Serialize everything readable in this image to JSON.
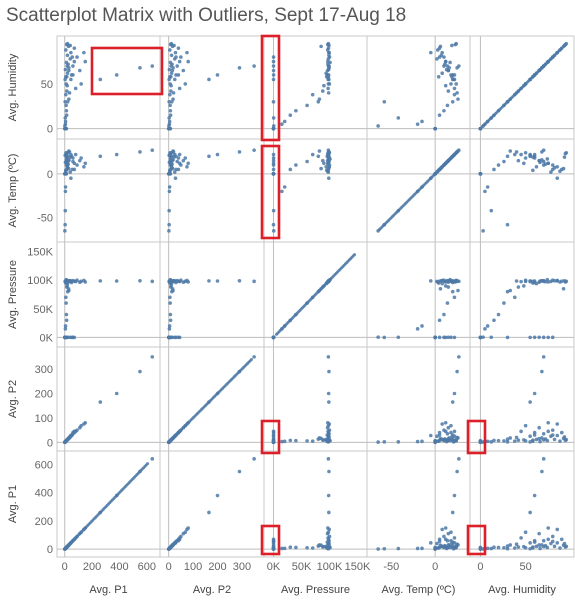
{
  "title": "Scatterplot Matrix with Outliers, Sept 17-Aug 18",
  "chart_data": {
    "type": "scatter",
    "subtype": "scatterplot-matrix",
    "title": "Scatterplot Matrix with Outliers, Sept 17-Aug 18",
    "grid": false,
    "color": "#4e79a7",
    "highlight_color": "#dd1f2a",
    "variables": [
      {
        "key": "p1",
        "label": "Avg. P1",
        "range": [
          -20,
          660
        ],
        "ticks": [
          {
            "v": 0,
            "t": "0"
          },
          {
            "v": 200,
            "t": "200"
          },
          {
            "v": 400,
            "t": "400"
          },
          {
            "v": 600,
            "t": "600"
          }
        ]
      },
      {
        "key": "p2",
        "label": "Avg. P2",
        "range": [
          -15,
          370
        ],
        "ticks": [
          {
            "v": 0,
            "t": "0"
          },
          {
            "v": 100,
            "t": "100"
          },
          {
            "v": 200,
            "t": "200"
          },
          {
            "v": 300,
            "t": "300"
          }
        ]
      },
      {
        "key": "pressure",
        "label": "Avg. Pressure",
        "range": [
          -8000,
          158000
        ],
        "ticks": [
          {
            "v": 0,
            "t": "0K"
          },
          {
            "v": 50000,
            "t": "50K"
          },
          {
            "v": 100000,
            "t": "100K"
          },
          {
            "v": 150000,
            "t": "150K"
          }
        ]
      },
      {
        "key": "temp",
        "label": "Avg. Temp (ºC)",
        "range": [
          -72,
          34
        ],
        "ticks": [
          {
            "v": -50,
            "t": "-50"
          },
          {
            "v": 0,
            "t": "0"
          }
        ]
      },
      {
        "key": "humidity",
        "label": "Avg. Humidity",
        "range": [
          -6,
          98
        ],
        "ticks": [
          {
            "v": 0,
            "t": "0"
          },
          {
            "v": 50,
            "t": "50"
          }
        ]
      }
    ],
    "rows": [
      "humidity",
      "temp",
      "pressure",
      "p2",
      "p1"
    ],
    "columns": [
      "p1",
      "p2",
      "pressure",
      "temp",
      "humidity"
    ],
    "records": [
      {
        "p1": 380,
        "p2": 200,
        "pressure": 98500,
        "temp": 22,
        "humidity": 60
      },
      {
        "p1": 550,
        "p2": 290,
        "pressure": 99000,
        "temp": 25,
        "humidity": 68
      },
      {
        "p1": 640,
        "p2": 350,
        "pressure": 98000,
        "temp": 27,
        "humidity": 70
      },
      {
        "p1": 260,
        "p2": 165,
        "pressure": 98800,
        "temp": 20,
        "humidity": 55
      },
      {
        "p1": 150,
        "p2": 80,
        "pressure": 97000,
        "temp": 12,
        "humidity": 75
      },
      {
        "p1": 140,
        "p2": 75,
        "pressure": 99500,
        "temp": 8,
        "humidity": 85
      },
      {
        "p1": 120,
        "p2": 68,
        "pressure": 98000,
        "temp": 18,
        "humidity": 50
      },
      {
        "p1": 110,
        "p2": 60,
        "pressure": 96500,
        "temp": 15,
        "humidity": 65
      },
      {
        "p1": 90,
        "p2": 50,
        "pressure": 100000,
        "temp": 10,
        "humidity": 80
      },
      {
        "p1": 80,
        "p2": 45,
        "pressure": 97500,
        "temp": 22,
        "humidity": 45
      },
      {
        "p1": 70,
        "p2": 40,
        "pressure": 98200,
        "temp": 5,
        "humidity": 90
      },
      {
        "p1": 60,
        "p2": 35,
        "pressure": 99200,
        "temp": 14,
        "humidity": 70
      },
      {
        "p1": 50,
        "p2": 30,
        "pressure": 96000,
        "temp": 20,
        "humidity": 60
      },
      {
        "p1": 45,
        "p2": 28,
        "pressure": 98700,
        "temp": -5,
        "humidity": 85
      },
      {
        "p1": 40,
        "p2": 25,
        "pressure": 97800,
        "temp": 2,
        "humidity": 78
      },
      {
        "p1": 35,
        "p2": 20,
        "pressure": 98500,
        "temp": 25,
        "humidity": 40
      },
      {
        "p1": 30,
        "p2": 18,
        "pressure": 99000,
        "temp": 16,
        "humidity": 68
      },
      {
        "p1": 25,
        "p2": 14,
        "pressure": 97200,
        "temp": 11,
        "humidity": 72
      },
      {
        "p1": 20,
        "p2": 12,
        "pressure": 98900,
        "temp": 7,
        "humidity": 82
      },
      {
        "p1": 15,
        "p2": 9,
        "pressure": 98100,
        "temp": 19,
        "humidity": 58
      },
      {
        "p1": 10,
        "p2": 6,
        "pressure": 99800,
        "temp": 24,
        "humidity": 50
      },
      {
        "p1": 8,
        "p2": 5,
        "pressure": 96800,
        "temp": 3,
        "humidity": 88
      },
      {
        "p1": 5,
        "p2": 3,
        "pressure": 98400,
        "temp": 13,
        "humidity": 66
      },
      {
        "p1": 3,
        "p2": 2,
        "pressure": 97600,
        "temp": 21,
        "humidity": 55
      },
      {
        "p1": 20,
        "p2": 12,
        "pressure": 94000,
        "temp": 8,
        "humidity": 62
      },
      {
        "p1": 12,
        "p2": 7,
        "pressure": 101000,
        "temp": 17,
        "humidity": 74
      },
      {
        "p1": 18,
        "p2": 10,
        "pressure": 90000,
        "temp": 12,
        "humidity": 48
      },
      {
        "p1": 28,
        "p2": 16,
        "pressure": 85000,
        "temp": 6,
        "humidity": 92
      },
      {
        "p1": 8,
        "p2": 5,
        "pressure": 95000,
        "temp": 4,
        "humidity": 58
      },
      {
        "p1": 15,
        "p2": 9,
        "pressure": 88000,
        "temp": 15,
        "humidity": 42
      },
      {
        "p1": 30,
        "p2": 18,
        "pressure": 82000,
        "temp": 26,
        "humidity": 33
      },
      {
        "p1": 22,
        "p2": 13,
        "pressure": 80000,
        "temp": 20,
        "humidity": 30
      },
      {
        "p1": 10,
        "p2": 6,
        "pressure": 60000,
        "temp": 14,
        "humidity": 26
      },
      {
        "p1": 12,
        "p2": 7,
        "pressure": 40000,
        "temp": 10,
        "humidity": 20
      },
      {
        "p1": 14,
        "p2": 8,
        "pressure": 30000,
        "temp": 5,
        "humidity": 15
      },
      {
        "p1": 8,
        "p2": 5,
        "pressure": 70000,
        "temp": 22,
        "humidity": 38
      },
      {
        "p1": 6,
        "p2": 4,
        "pressure": 20000,
        "temp": -15,
        "humidity": 8
      },
      {
        "p1": 5,
        "p2": 3,
        "pressure": 15000,
        "temp": -20,
        "humidity": 5
      },
      {
        "p1": 18,
        "p2": 10,
        "pressure": 120,
        "temp": 10,
        "humidity": 70
      },
      {
        "p1": 30,
        "p2": 15,
        "pressure": 200,
        "temp": 15,
        "humidity": 65
      },
      {
        "p1": 45,
        "p2": 25,
        "pressure": 80,
        "temp": 22,
        "humidity": 55
      },
      {
        "p1": 55,
        "p2": 30,
        "pressure": 150,
        "temp": 5,
        "humidity": 80
      },
      {
        "p1": 60,
        "p2": 40,
        "pressure": 250,
        "temp": 18,
        "humidity": 60
      },
      {
        "p1": 70,
        "p2": 45,
        "pressure": 100,
        "temp": 12,
        "humidity": 75
      },
      {
        "p1": 0,
        "p2": 0,
        "pressure": 0,
        "temp": 0,
        "humidity": 0
      },
      {
        "p1": 2,
        "p2": 1,
        "pressure": 0,
        "temp": 0,
        "humidity": 0
      },
      {
        "p1": 5,
        "p2": 3,
        "pressure": 0,
        "temp": 0,
        "humidity": 0
      },
      {
        "p1": 8,
        "p2": 5,
        "pressure": 0,
        "temp": 0,
        "humidity": 0
      },
      {
        "p1": 12,
        "p2": 7,
        "pressure": 0,
        "temp": 0,
        "humidity": 0
      },
      {
        "p1": 3,
        "p2": 2,
        "pressure": 0,
        "temp": -58,
        "humidity": 30
      },
      {
        "p1": 4,
        "p2": 2,
        "pressure": 300,
        "temp": -42,
        "humidity": 12
      },
      {
        "p1": 1,
        "p2": 1,
        "pressure": 500,
        "temp": -65,
        "humidity": 3
      },
      {
        "p1": 15,
        "p2": 8,
        "pressure": 97000,
        "temp": 23,
        "humidity": 94
      },
      {
        "p1": 20,
        "p2": 11,
        "pressure": 98000,
        "temp": 24,
        "humidity": 95
      },
      {
        "p1": 40,
        "p2": 22,
        "pressure": 99000,
        "temp": 19,
        "humidity": 93
      }
    ]
  }
}
